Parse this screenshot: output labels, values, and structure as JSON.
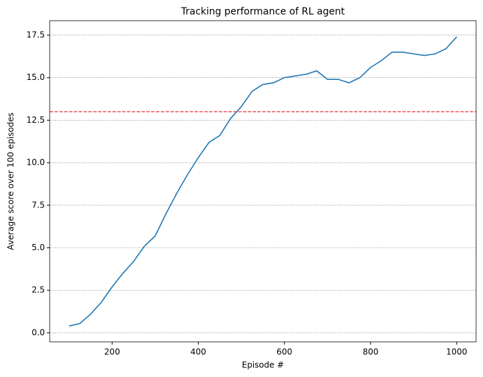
{
  "chart_data": {
    "type": "line",
    "title": "Tracking performance of RL agent",
    "x_label": "Episode #",
    "y_label": "Average score over 100 episodes",
    "x": [
      100,
      125,
      150,
      175,
      200,
      225,
      250,
      275,
      300,
      325,
      350,
      375,
      400,
      425,
      450,
      475,
      500,
      525,
      550,
      575,
      600,
      625,
      650,
      675,
      700,
      725,
      750,
      775,
      800,
      825,
      850,
      875,
      900,
      925,
      950,
      975,
      1000
    ],
    "series": [
      {
        "color": "#1f77b4",
        "values": [
          0.4,
          0.55,
          1.1,
          1.8,
          2.7,
          3.5,
          4.2,
          5.1,
          5.7,
          7.0,
          8.2,
          9.3,
          10.3,
          11.2,
          11.6,
          12.6,
          13.3,
          14.2,
          14.6,
          14.7,
          15.0,
          15.1,
          15.2,
          15.4,
          14.9,
          14.9,
          14.7,
          15.0,
          15.6,
          16.0,
          16.5,
          16.5,
          16.4,
          16.3,
          16.4,
          16.7,
          17.4
        ]
      }
    ],
    "hline": {
      "value": 13,
      "color": "#e41a1c"
    },
    "xlim": [
      55,
      1045
    ],
    "xticks": [
      200,
      400,
      600,
      800,
      1000
    ],
    "ylim": [
      -0.53,
      18.35
    ],
    "yticks": [
      {
        "value": 0,
        "label": "0.0"
      },
      2.5,
      {
        "value": 5,
        "label": "5.0"
      },
      7.5,
      {
        "value": 10,
        "label": "10.0"
      },
      12.5,
      {
        "value": 15,
        "label": "15.0"
      },
      17.5
    ],
    "grid": "y"
  }
}
